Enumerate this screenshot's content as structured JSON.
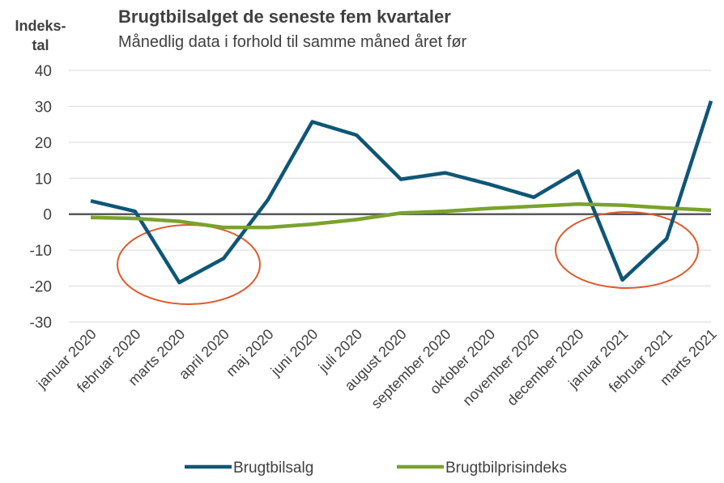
{
  "chart_data": {
    "type": "line",
    "title": "Brugtbilsalget de seneste fem kvartaler",
    "subtitle": "Månedlig data i forhold til samme måned året før",
    "ylabel": [
      "Indeks-",
      "tal"
    ],
    "categories": [
      "januar 2020",
      "februar 2020",
      "marts 2020",
      "april 2020",
      "maj 2020",
      "juni 2020",
      "juli 2020",
      "august 2020",
      "september 2020",
      "oktober 2020",
      "november 2020",
      "december 2020",
      "januar 2021",
      "februar 2021",
      "marts 2021"
    ],
    "series": [
      {
        "name": "Brugtbilsalg",
        "color": "#0e5677",
        "values": [
          3.7,
          0.8,
          -19,
          -12.3,
          4,
          25.7,
          22,
          9.7,
          11.5,
          8.3,
          4.7,
          12,
          -18.3,
          -6.8,
          31.5
        ]
      },
      {
        "name": "Brugtbilprisindeks",
        "color": "#7aa22f",
        "values": [
          -0.9,
          -1.2,
          -2,
          -3.7,
          -3.7,
          -2.8,
          -1.5,
          0.3,
          0.8,
          1.6,
          2.2,
          2.8,
          2.5,
          1.7,
          1.1
        ]
      }
    ],
    "ylim": [
      -30,
      40
    ],
    "yticks": [
      -30,
      -20,
      -10,
      0,
      10,
      20,
      30,
      40
    ],
    "grid": true
  }
}
